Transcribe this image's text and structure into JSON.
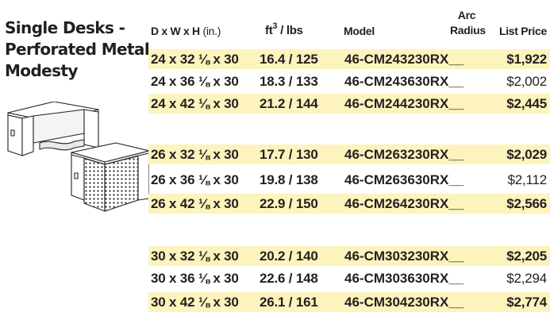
{
  "title": {
    "line1": "Single Desks -",
    "line2": "Perforated Metal",
    "line3": "Modesty"
  },
  "headers": {
    "dims": "D x W x H",
    "dims_unit": "(in.)",
    "ft": "ft",
    "ft_sup": "3",
    "ft_rest": " / lbs",
    "model": "Model",
    "arc_line1": "Arc",
    "arc_line2": "Radius",
    "price": "List Price"
  },
  "illustrations": [
    "desk-front-view-icon",
    "desk-perforated-back-view-icon"
  ],
  "rows": [
    {
      "dims": "24 x 32 ⅛ x 30",
      "ft_lbs": "16.4 / 125",
      "model": "46-CM243230RX__",
      "price": "$1,922",
      "shaded": true
    },
    {
      "dims": "24 x 36 ⅛ x 30",
      "ft_lbs": "18.3 / 133",
      "model": "46-CM243630RX__",
      "price": "$2,002",
      "shaded": false
    },
    {
      "dims": "24 x 42 ⅛ x 30",
      "ft_lbs": "21.2 / 144",
      "model": "46-CM244230RX__",
      "price": "$2,445",
      "shaded": true
    },
    {
      "dims": "26 x 32 ⅛ x 30",
      "ft_lbs": "17.7 / 130",
      "model": "46-CM263230RX__",
      "price": "$2,029",
      "shaded": true
    },
    {
      "dims": "26 x 36 ⅛ x 30",
      "ft_lbs": "19.8 / 138",
      "model": "46-CM263630RX__",
      "price": "$2,112",
      "shaded": false
    },
    {
      "dims": "26 x 42 ⅛ x 30",
      "ft_lbs": "22.9 / 150",
      "model": "46-CM264230RX__",
      "price": "$2,566",
      "shaded": true
    },
    {
      "dims": "30 x 32 ⅛ x 30",
      "ft_lbs": "20.2 / 140",
      "model": "46-CM303230RX__",
      "price": "$2,205",
      "shaded": true
    },
    {
      "dims": "30 x 36 ⅛ x 30",
      "ft_lbs": "22.6 / 148",
      "model": "46-CM303630RX__",
      "price": "$2,294",
      "shaded": false
    },
    {
      "dims": "30 x 42 ⅛ x 30",
      "ft_lbs": "26.1 / 161",
      "model": "46-CM304230RX__",
      "price": "$2,774",
      "shaded": true
    }
  ],
  "colors": {
    "text": "#231f20",
    "row_shade": "#fdf3bd",
    "line": "#231f20"
  }
}
